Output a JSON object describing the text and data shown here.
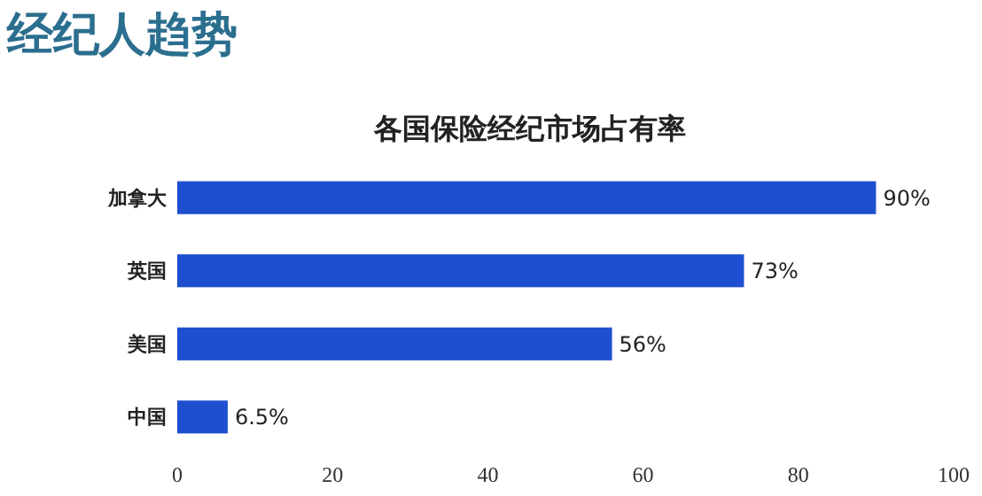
{
  "chart_data": {
    "type": "bar",
    "orientation": "horizontal",
    "title": "经纪人趋势",
    "subtitle": "各国保险经纪市场占有率",
    "categories": [
      "加拿大",
      "英国",
      "美国",
      "中国"
    ],
    "values": [
      90,
      73,
      56,
      6.5
    ],
    "color": "#1e4fd0",
    "value_labels": [
      "90%",
      "73%",
      "56%",
      "6.5%"
    ],
    "xlim": [
      0,
      100
    ],
    "xticks": [
      0,
      20,
      40,
      60,
      80,
      100
    ],
    "grid": false
  }
}
